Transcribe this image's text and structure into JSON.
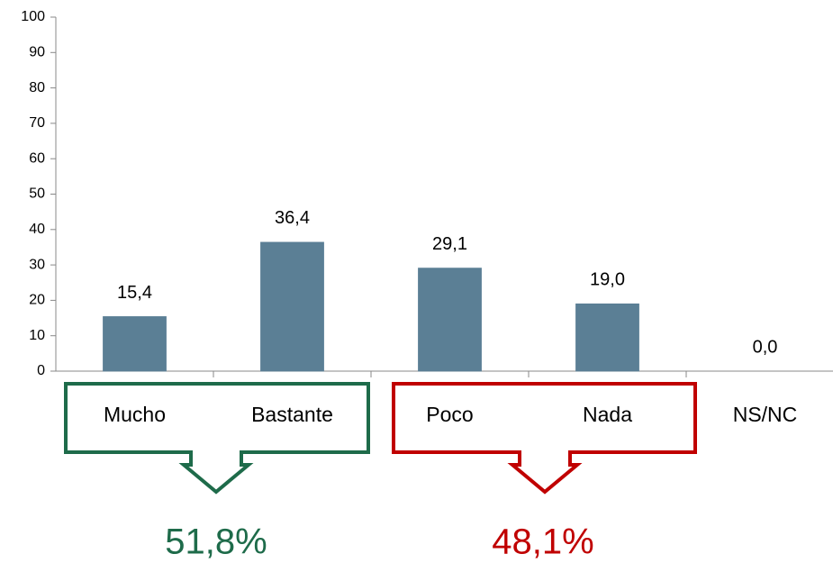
{
  "chart_data": {
    "type": "bar",
    "categories": [
      "Mucho",
      "Bastante",
      "Poco",
      "Nada",
      "NS/NC"
    ],
    "values": [
      15.4,
      36.4,
      29.1,
      19.0,
      0.0
    ],
    "value_labels": [
      "15,4",
      "36,4",
      "29,1",
      "19,0",
      "0,0"
    ],
    "color": "#5b7f95",
    "ylim": [
      0,
      100
    ],
    "yticks": [
      0,
      10,
      20,
      30,
      40,
      50,
      60,
      70,
      80,
      90,
      100
    ],
    "grid": false,
    "annotations": [
      {
        "text": "51,8%",
        "color": "#1e6b4a"
      },
      {
        "text": "48,1%",
        "color": "#c00000"
      }
    ]
  }
}
